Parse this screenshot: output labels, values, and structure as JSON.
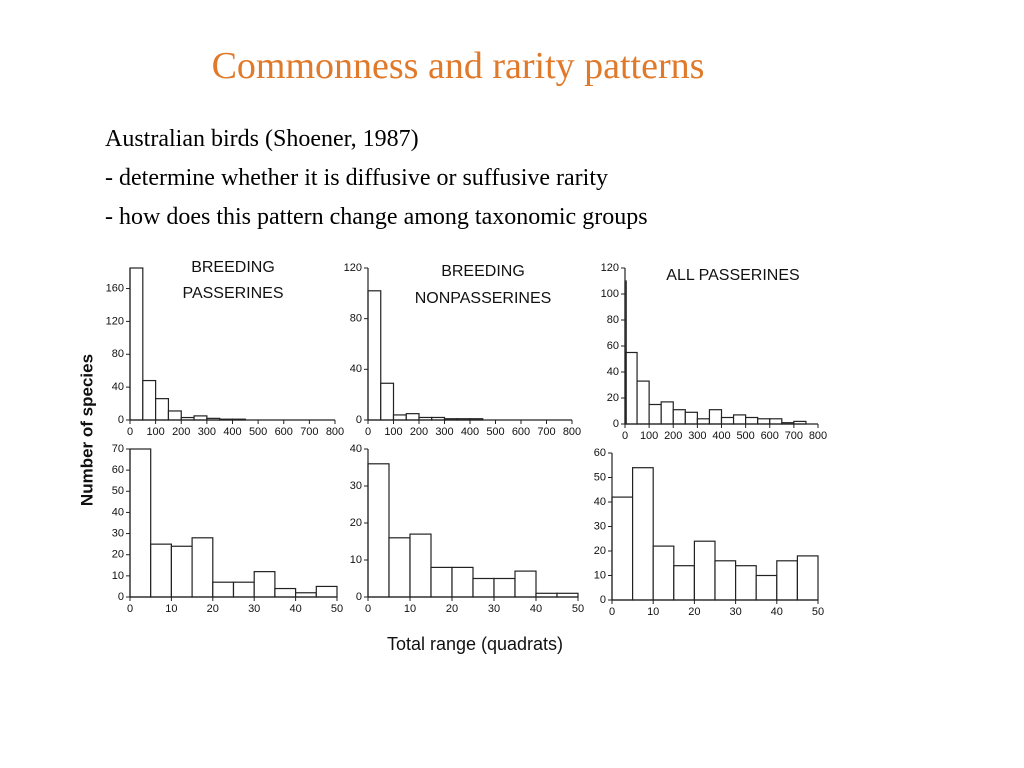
{
  "header": {
    "title": "Commonness and rarity patterns",
    "lines": [
      "Australian birds (Shoener, 1987)",
      "- determine whether it is diffusive or suffusive rarity",
      "- how does this pattern change among taxonomic groups"
    ]
  },
  "ylabel": "Number of species",
  "xlabel": "Total range (quadrats)",
  "chart_data": [
    {
      "type": "histogram",
      "title": [
        "BREEDING",
        "PASSERINES"
      ],
      "bins": [
        0,
        50,
        100,
        150,
        200,
        250,
        300,
        350,
        400,
        450,
        500,
        550,
        600,
        650,
        700,
        750,
        800
      ],
      "values": [
        185,
        48,
        26,
        11,
        3,
        5,
        2,
        1,
        1,
        0,
        0,
        0,
        0,
        0,
        0,
        0
      ],
      "xlim": [
        0,
        800
      ],
      "xticks": [
        0,
        100,
        200,
        300,
        400,
        500,
        600,
        700,
        800
      ],
      "ylim": [
        0,
        185
      ],
      "yticks": [
        0,
        40,
        80,
        120,
        160
      ],
      "color": "#ffffff"
    },
    {
      "type": "histogram",
      "title": [
        "BREEDING",
        "NONPASSERINES"
      ],
      "bins": [
        0,
        50,
        100,
        150,
        200,
        250,
        300,
        350,
        400,
        450,
        500,
        550,
        600,
        650,
        700,
        750,
        800
      ],
      "values": [
        102,
        29,
        4,
        5,
        2,
        2,
        1,
        1,
        1,
        0,
        0,
        0,
        0,
        0,
        0,
        0
      ],
      "xlim": [
        0,
        800
      ],
      "xticks": [
        0,
        100,
        200,
        300,
        400,
        500,
        600,
        700,
        800
      ],
      "ylim": [
        0,
        120
      ],
      "yticks": [
        0,
        40,
        80,
        120
      ],
      "color": "#ffffff"
    },
    {
      "type": "histogram",
      "title": [
        "ALL PASSERINES"
      ],
      "bins": [
        0,
        5,
        50,
        100,
        150,
        200,
        250,
        300,
        350,
        400,
        450,
        500,
        550,
        600,
        650,
        700,
        750
      ],
      "values": [
        110,
        55,
        33,
        15,
        17,
        11,
        9,
        4,
        11,
        5,
        7,
        5,
        4,
        4,
        1,
        2
      ],
      "xlim": [
        0,
        800
      ],
      "xticks": [
        0,
        100,
        200,
        300,
        400,
        500,
        600,
        700,
        800
      ],
      "ylim": [
        0,
        120
      ],
      "yticks": [
        0,
        20,
        40,
        60,
        80,
        100,
        120
      ],
      "color": "#ffffff"
    },
    {
      "type": "histogram",
      "bins": [
        0,
        5,
        10,
        15,
        20,
        25,
        30,
        35,
        40,
        45,
        50
      ],
      "values": [
        70,
        25,
        24,
        28,
        7,
        7,
        12,
        4,
        2,
        5
      ],
      "xlim": [
        0,
        50
      ],
      "xticks": [
        0,
        10,
        20,
        30,
        40,
        50
      ],
      "ylim": [
        0,
        70
      ],
      "yticks": [
        0,
        10,
        20,
        30,
        40,
        50,
        60,
        70
      ],
      "color": "#ffffff"
    },
    {
      "type": "histogram",
      "bins": [
        0,
        5,
        10,
        15,
        20,
        25,
        30,
        35,
        40,
        45,
        50
      ],
      "values": [
        36,
        16,
        17,
        8,
        8,
        5,
        5,
        7,
        1,
        1
      ],
      "xlim": [
        0,
        50
      ],
      "xticks": [
        0,
        10,
        20,
        30,
        40,
        50
      ],
      "ylim": [
        0,
        40
      ],
      "yticks": [
        0,
        10,
        20,
        30,
        40
      ],
      "color": "#ffffff"
    },
    {
      "type": "histogram",
      "bins": [
        0,
        5,
        10,
        15,
        20,
        25,
        30,
        35,
        40,
        45,
        50
      ],
      "values": [
        42,
        54,
        22,
        14,
        24,
        16,
        14,
        10,
        16,
        18
      ],
      "xlim": [
        0,
        50
      ],
      "xticks": [
        0,
        10,
        20,
        30,
        40,
        50
      ],
      "ylim": [
        0,
        60
      ],
      "yticks": [
        0,
        10,
        20,
        30,
        40,
        50,
        60
      ],
      "color": "#ffffff"
    }
  ]
}
